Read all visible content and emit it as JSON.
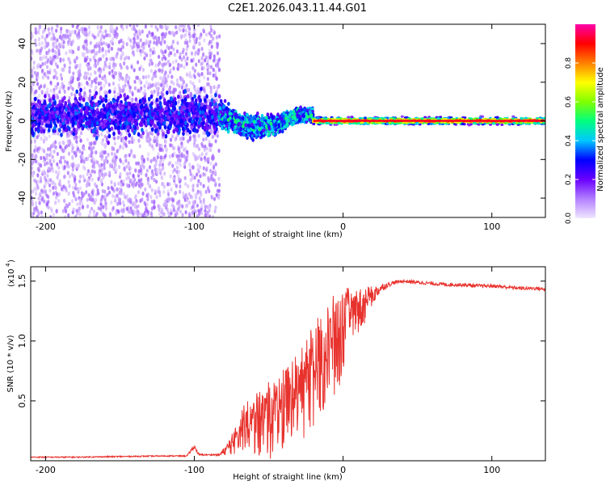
{
  "title": "C2E1.2026.043.11.44.G01",
  "chart_data": [
    {
      "type": "heatmap",
      "xlabel": "Height of straight line (km)",
      "ylabel": "Frequency (Hz)",
      "xlim": [
        -210,
        136
      ],
      "ylim": [
        -50,
        50
      ],
      "xticks": [
        -200,
        -100,
        0,
        100
      ],
      "yticks": [
        -40,
        -20,
        0,
        20,
        40
      ],
      "colorbar": {
        "label": "Normalized spectral amplitude",
        "range": [
          0,
          1
        ],
        "ticks": [
          "0.0",
          "0.2",
          "0.4",
          "0.6",
          "0.8"
        ],
        "colors": [
          "#f0e6ff",
          "#b380ff",
          "#6a00ff",
          "#0000ff",
          "#00c8ff",
          "#00ff80",
          "#80ff00",
          "#ffff00",
          "#ff8000",
          "#ff0000",
          "#ff00aa"
        ]
      },
      "regions": [
        {
          "x_range": [
            -210,
            -83
          ],
          "freq_spread": "-50 to 50",
          "core_amplitude": 0.15,
          "description": "noise"
        },
        {
          "x_range": [
            -83,
            -20
          ],
          "freq_spread": "-15 to 7",
          "core_amplitude": 0.4
        },
        {
          "x_range": [
            -20,
            136
          ],
          "freq_center": 0,
          "core_amplitude": 1.0
        }
      ]
    },
    {
      "type": "line",
      "xlabel": "Height of straight line (km)",
      "ylabel": "SNR (10 * v/v)",
      "yscale_label": "(x10",
      "yscale_exp": "4",
      "xlim": [
        -210,
        136
      ],
      "ylim": [
        0,
        1.62
      ],
      "xticks": [
        -200,
        -100,
        0,
        100
      ],
      "yticks": [
        "0.5",
        "1.0",
        "1.5"
      ],
      "series": [
        {
          "color": "#e8322d",
          "x": [
            -210,
            -180,
            -150,
            -120,
            -105,
            -100,
            -97,
            -90,
            -83,
            -78,
            -72,
            -65,
            -55,
            -45,
            -35,
            -25,
            -18,
            -12,
            -5,
            0,
            5,
            10,
            15,
            20,
            25,
            30,
            35,
            40,
            50,
            60,
            70,
            80,
            90,
            100,
            110,
            120,
            130,
            136
          ],
          "y": [
            0.03,
            0.03,
            0.035,
            0.04,
            0.04,
            0.12,
            0.05,
            0.05,
            0.05,
            0.1,
            0.2,
            0.3,
            0.32,
            0.35,
            0.45,
            0.6,
            0.75,
            0.85,
            0.95,
            1.1,
            1.2,
            1.25,
            1.3,
            1.38,
            1.44,
            1.47,
            1.49,
            1.5,
            1.49,
            1.48,
            1.47,
            1.47,
            1.46,
            1.46,
            1.45,
            1.44,
            1.44,
            1.43
          ],
          "noise_amplitude": [
            0.005,
            0.005,
            0.005,
            0.005,
            0.005,
            0.02,
            0.01,
            0.005,
            0.01,
            0.05,
            0.15,
            0.2,
            0.3,
            0.35,
            0.38,
            0.4,
            0.45,
            0.45,
            0.45,
            0.35,
            0.25,
            0.2,
            0.15,
            0.08,
            0.04,
            0.02,
            0.015,
            0.015,
            0.015,
            0.015,
            0.015,
            0.015,
            0.015,
            0.015,
            0.015,
            0.015,
            0.015,
            0.015
          ]
        }
      ]
    }
  ]
}
